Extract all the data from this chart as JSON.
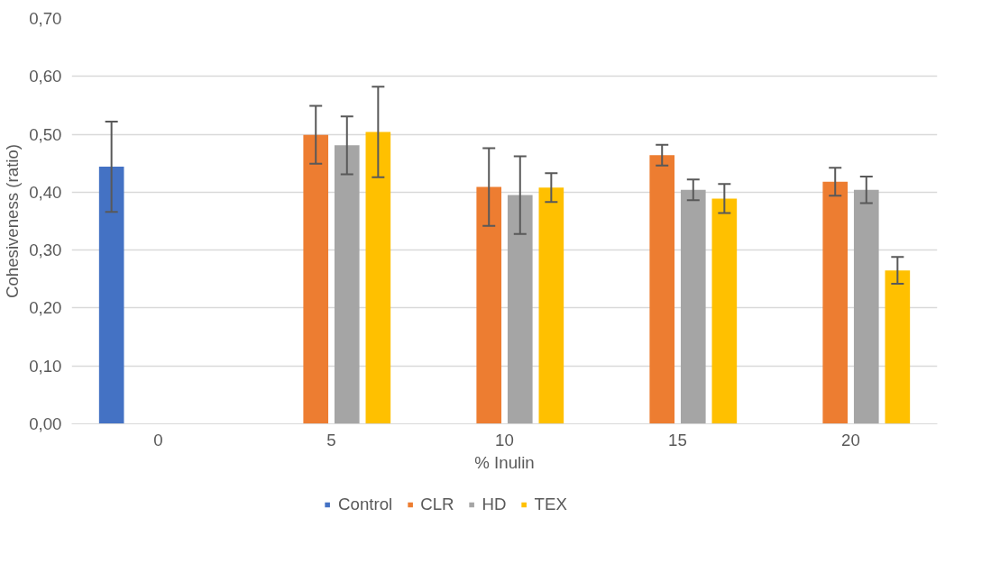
{
  "chart_data": {
    "type": "bar",
    "xlabel": "% Inulin",
    "ylabel": "Cohesiveness (ratio)",
    "categories": [
      "0",
      "5",
      "10",
      "15",
      "20"
    ],
    "series": [
      {
        "name": "Control",
        "color": "#4472c4",
        "values": [
          0.444,
          null,
          null,
          null,
          null
        ],
        "errors": [
          0.078,
          null,
          null,
          null,
          null
        ]
      },
      {
        "name": "CLR",
        "color": "#ed7d31",
        "values": [
          null,
          0.499,
          0.409,
          0.464,
          0.418
        ],
        "errors": [
          null,
          0.05,
          0.067,
          0.018,
          0.024
        ]
      },
      {
        "name": "HD",
        "color": "#a5a5a5",
        "values": [
          null,
          0.481,
          0.395,
          0.404,
          0.404
        ],
        "errors": [
          null,
          0.05,
          0.067,
          0.018,
          0.023
        ]
      },
      {
        "name": "TEX",
        "color": "#ffc000",
        "values": [
          null,
          0.504,
          0.408,
          0.389,
          0.265
        ],
        "errors": [
          null,
          0.078,
          0.025,
          0.025,
          0.023
        ]
      }
    ],
    "ylim": [
      0,
      0.7
    ],
    "yticks": [
      {
        "value": 0,
        "label": "0,00"
      },
      {
        "value": 0.1,
        "label": "0,10"
      },
      {
        "value": 0.2,
        "label": "0,20"
      },
      {
        "value": 0.3,
        "label": "0,30"
      },
      {
        "value": 0.4,
        "label": "0,40"
      },
      {
        "value": 0.5,
        "label": "0,50"
      },
      {
        "value": 0.6,
        "label": "0,60"
      },
      {
        "value": 0.7,
        "label": "0,70"
      }
    ],
    "grid": "y",
    "legend": "bottom"
  }
}
